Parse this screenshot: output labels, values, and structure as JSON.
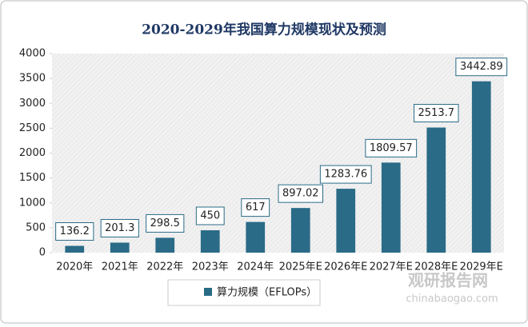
{
  "chart_data": {
    "type": "bar",
    "title": "2020-2029年我国算力规模现状及预测",
    "categories": [
      "2020年",
      "2021年",
      "2022年",
      "2023年",
      "2024年",
      "2025年E",
      "2026年E",
      "2027年E",
      "2028年E",
      "2029年E"
    ],
    "series": [
      {
        "name": "算力规模（EFLOPs）",
        "color": "#2a6b87",
        "values": [
          136.2,
          201.3,
          298.5,
          450,
          617,
          897.02,
          1283.76,
          1809.57,
          2513.7,
          3442.89
        ]
      }
    ],
    "ylim": [
      0,
      4000
    ],
    "yticks": [
      0,
      500,
      1000,
      1500,
      2000,
      2500,
      3000,
      3500,
      4000
    ],
    "legend": "bottom",
    "watermark": [
      "观研报告网",
      "chinabaogao.com"
    ]
  }
}
